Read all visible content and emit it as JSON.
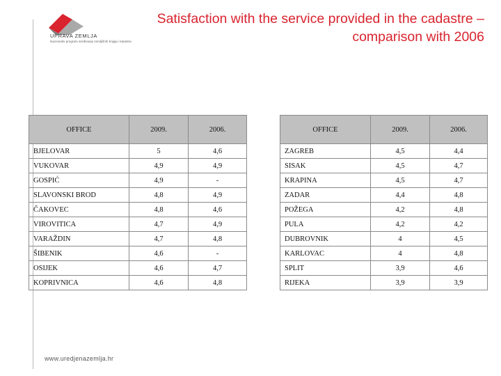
{
  "logo": {
    "name": "UPRAVA ZEMLJA",
    "subtitle": "Nacionalni program sređivanja zemljišnih knjiga i katastra"
  },
  "title": "Satisfaction with the service provided in the cadastre – comparison with 2006",
  "footer": "www.uredjenazemlja.hr",
  "colors": {
    "title": "#d9232e",
    "header_fill": "#c0c0c0",
    "logo_red": "#d9232e"
  },
  "tables": {
    "left": {
      "headers": {
        "office": "OFFICE",
        "y2009": "2009.",
        "y2006": "2006."
      },
      "rows": [
        {
          "office": "BJELOVAR",
          "y2009": "5",
          "y2006": "4,6"
        },
        {
          "office": "VUKOVAR",
          "y2009": "4,9",
          "y2006": "4,9"
        },
        {
          "office": "GOSPIĆ",
          "y2009": "4,9",
          "y2006": "-"
        },
        {
          "office": "SLAVONSKI BROD",
          "y2009": "4,8",
          "y2006": "4,9"
        },
        {
          "office": "ČAKOVEC",
          "y2009": "4,8",
          "y2006": "4,6"
        },
        {
          "office": "VIROVITICA",
          "y2009": "4,7",
          "y2006": "4,9"
        },
        {
          "office": "VARAŽDIN",
          "y2009": "4,7",
          "y2006": "4,8"
        },
        {
          "office": "ŠIBENIK",
          "y2009": "4,6",
          "y2006": "-"
        },
        {
          "office": "OSIJEK",
          "y2009": "4,6",
          "y2006": "4,7"
        },
        {
          "office": "KOPRIVNICA",
          "y2009": "4,6",
          "y2006": "4,8"
        }
      ]
    },
    "right": {
      "headers": {
        "office": "OFFICE",
        "y2009": "2009.",
        "y2006": "2006."
      },
      "rows": [
        {
          "office": "ZAGREB",
          "y2009": "4,5",
          "y2006": "4,4"
        },
        {
          "office": "SISAK",
          "y2009": "4,5",
          "y2006": "4,7"
        },
        {
          "office": "KRAPINA",
          "y2009": "4,5",
          "y2006": "4,7"
        },
        {
          "office": "ZADAR",
          "y2009": "4,4",
          "y2006": "4,8"
        },
        {
          "office": "POŽEGA",
          "y2009": "4,2",
          "y2006": "4,8"
        },
        {
          "office": "PULA",
          "y2009": "4,2",
          "y2006": "4,2"
        },
        {
          "office": "DUBROVNIK",
          "y2009": "4",
          "y2006": "4,5"
        },
        {
          "office": "KARLOVAC",
          "y2009": "4",
          "y2006": "4,8"
        },
        {
          "office": "SPLIT",
          "y2009": "3,9",
          "y2006": "4,6"
        },
        {
          "office": "RIJEKA",
          "y2009": "3,9",
          "y2006": "3,9"
        }
      ]
    }
  }
}
